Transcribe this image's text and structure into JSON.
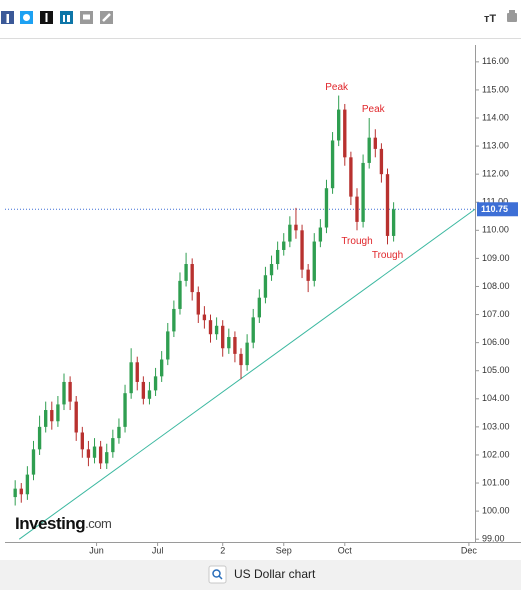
{
  "toolbar": {
    "font_icon": "тT"
  },
  "chart_data": {
    "type": "candlestick",
    "xlim": [
      107,
      338
    ],
    "xticks": [
      {
        "value": 152,
        "label": "Jun"
      },
      {
        "value": 182,
        "label": "Jul"
      },
      {
        "value": 214,
        "label": "2"
      },
      {
        "value": 244,
        "label": "Sep"
      },
      {
        "value": 274,
        "label": "Oct"
      },
      {
        "value": 335,
        "label": "Dec"
      }
    ],
    "ylim": [
      98.9,
      116.6
    ],
    "yticks": [
      {
        "value": 99,
        "label": "99.00"
      },
      {
        "value": 100,
        "label": "100.00"
      },
      {
        "value": 101,
        "label": "101.00"
      },
      {
        "value": 102,
        "label": "102.00"
      },
      {
        "value": 103,
        "label": "103.00"
      },
      {
        "value": 104,
        "label": "104.00"
      },
      {
        "value": 105,
        "label": "105.00"
      },
      {
        "value": 106,
        "label": "106.00"
      },
      {
        "value": 107,
        "label": "107.00"
      },
      {
        "value": 108,
        "label": "108.00"
      },
      {
        "value": 109,
        "label": "109.00"
      },
      {
        "value": 110,
        "label": "110.00"
      },
      {
        "value": 111,
        "label": "111.00"
      },
      {
        "value": 112,
        "label": "112.00"
      },
      {
        "value": 113,
        "label": "113.00"
      },
      {
        "value": 114,
        "label": "114.00"
      },
      {
        "value": 115,
        "label": "115.00"
      },
      {
        "value": 116,
        "label": "116.00"
      }
    ],
    "up_color": "#2f9e50",
    "down_color": "#b8312f",
    "candles": {
      "x": [
        112,
        115,
        118,
        121,
        124,
        127,
        130,
        133,
        136,
        139,
        142,
        145,
        148,
        151,
        154,
        157,
        160,
        163,
        166,
        169,
        172,
        175,
        178,
        181,
        184,
        187,
        190,
        193,
        196,
        199,
        202,
        205,
        208,
        211,
        214,
        217,
        220,
        223,
        226,
        229,
        232,
        235,
        238,
        241,
        244,
        247,
        250,
        253,
        256,
        259,
        262,
        265,
        268,
        271,
        274,
        277,
        280,
        283,
        286,
        289,
        292,
        295,
        298
      ],
      "open": [
        100.5,
        100.8,
        100.6,
        101.3,
        102.2,
        103.0,
        103.6,
        103.2,
        103.8,
        104.6,
        103.9,
        102.8,
        102.2,
        101.9,
        102.3,
        101.7,
        102.1,
        102.6,
        103.0,
        104.2,
        105.3,
        104.6,
        104.0,
        104.3,
        104.8,
        105.4,
        106.4,
        107.2,
        108.2,
        108.8,
        107.8,
        107.0,
        106.8,
        106.3,
        106.6,
        105.8,
        106.2,
        105.6,
        105.2,
        106.0,
        106.9,
        107.6,
        108.4,
        108.8,
        109.3,
        109.6,
        110.2,
        110.0,
        108.6,
        108.2,
        109.6,
        110.1,
        111.5,
        113.2,
        114.3,
        112.6,
        111.2,
        110.3,
        112.4,
        113.3,
        112.9,
        112.0,
        109.8
      ],
      "high": [
        101.1,
        101.0,
        101.6,
        102.5,
        103.4,
        103.9,
        103.9,
        104.1,
        104.9,
        104.8,
        104.1,
        103.0,
        102.5,
        102.6,
        102.5,
        102.4,
        102.9,
        103.3,
        104.5,
        105.8,
        105.5,
        104.8,
        104.6,
        105.1,
        105.7,
        106.7,
        107.5,
        108.5,
        109.2,
        109.0,
        108.0,
        107.3,
        107.0,
        106.9,
        106.8,
        106.5,
        106.4,
        105.8,
        106.3,
        107.2,
        107.9,
        108.7,
        109.1,
        109.6,
        109.9,
        110.5,
        110.8,
        110.2,
        108.8,
        109.9,
        110.4,
        111.8,
        113.5,
        114.8,
        114.5,
        112.8,
        111.5,
        112.7,
        114.0,
        113.6,
        113.1,
        112.2,
        111.0
      ],
      "low": [
        100.2,
        100.3,
        100.4,
        101.1,
        102.0,
        102.8,
        102.9,
        103.0,
        103.6,
        103.6,
        102.5,
        101.9,
        101.6,
        101.7,
        101.5,
        101.5,
        101.9,
        102.4,
        102.8,
        104.0,
        104.3,
        103.8,
        103.8,
        104.1,
        104.6,
        105.2,
        106.2,
        107.0,
        108.0,
        107.5,
        106.7,
        106.5,
        106.0,
        106.1,
        105.5,
        105.6,
        105.3,
        104.7,
        105.0,
        105.8,
        106.7,
        107.4,
        108.2,
        108.6,
        109.1,
        109.4,
        109.7,
        108.3,
        107.8,
        108.0,
        109.4,
        109.9,
        111.3,
        113.0,
        112.3,
        110.9,
        110.0,
        110.1,
        112.2,
        112.6,
        111.7,
        109.5,
        109.6
      ],
      "close": [
        100.8,
        100.6,
        101.3,
        102.2,
        103.0,
        103.6,
        103.2,
        103.8,
        104.6,
        103.9,
        102.8,
        102.2,
        101.9,
        102.3,
        101.7,
        102.1,
        102.6,
        103.0,
        104.2,
        105.3,
        104.6,
        104.0,
        104.3,
        104.8,
        105.4,
        106.4,
        107.2,
        108.2,
        108.8,
        107.8,
        107.0,
        106.8,
        106.3,
        106.6,
        105.8,
        106.2,
        105.6,
        105.2,
        106.0,
        106.9,
        107.6,
        108.4,
        108.8,
        109.3,
        109.6,
        110.2,
        110.0,
        108.6,
        108.2,
        109.6,
        110.1,
        111.5,
        113.2,
        114.3,
        112.6,
        111.2,
        110.3,
        112.4,
        113.3,
        112.9,
        112.0,
        109.8,
        110.75
      ]
    },
    "last_price": 110.75,
    "last_price_color": "#3d6fd6",
    "trendline": {
      "x": [
        114,
        338
      ],
      "y": [
        99.0,
        110.75
      ],
      "color": "#3bb8a0"
    },
    "annotations": [
      {
        "text": "Peak",
        "x": 270,
        "y": 115.1
      },
      {
        "text": "Peak",
        "x": 288,
        "y": 114.3
      },
      {
        "text": "Trough",
        "x": 280,
        "y": 109.6
      },
      {
        "text": "Trough",
        "x": 295,
        "y": 109.1
      }
    ],
    "annotation_color": "#e0262b",
    "logo": {
      "name": "Investing",
      "suffix": ".com"
    }
  },
  "footer": {
    "caption": "US Dollar chart"
  }
}
